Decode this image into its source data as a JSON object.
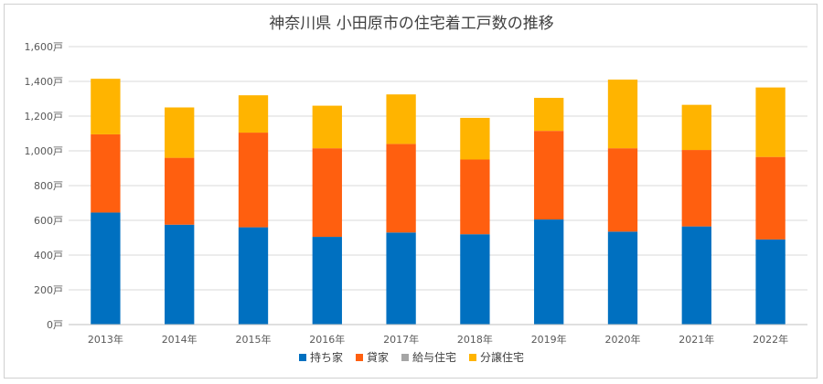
{
  "chart_data": {
    "type": "bar",
    "stacked": true,
    "title": "神奈川県 小田原市の住宅着工戸数の推移",
    "xlabel": "",
    "ylabel": "",
    "ylim": [
      0,
      1600
    ],
    "grid": true,
    "legend_position": "bottom",
    "categories": [
      "2013年",
      "2014年",
      "2015年",
      "2016年",
      "2017年",
      "2018年",
      "2019年",
      "2020年",
      "2021年",
      "2022年"
    ],
    "y_ticks": [
      {
        "value": 0,
        "label": "0戸"
      },
      {
        "value": 200,
        "label": "200戸"
      },
      {
        "value": 400,
        "label": "400戸"
      },
      {
        "value": 600,
        "label": "600戸"
      },
      {
        "value": 800,
        "label": "800戸"
      },
      {
        "value": 1000,
        "label": "1,000戸"
      },
      {
        "value": 1200,
        "label": "1,200戸"
      },
      {
        "value": 1400,
        "label": "1,400戸"
      },
      {
        "value": 1600,
        "label": "1,600戸"
      }
    ],
    "series": [
      {
        "name": "持ち家",
        "color": "#0070C0",
        "values": [
          645,
          575,
          560,
          505,
          530,
          520,
          605,
          535,
          565,
          490
        ]
      },
      {
        "name": "貸家",
        "color": "#FF5F0F",
        "values": [
          450,
          385,
          545,
          510,
          510,
          430,
          510,
          480,
          440,
          475
        ]
      },
      {
        "name": "給与住宅",
        "color": "#A5A5A5",
        "values": [
          0,
          0,
          0,
          0,
          0,
          0,
          0,
          0,
          0,
          0
        ]
      },
      {
        "name": "分譲住宅",
        "color": "#FFB400",
        "values": [
          320,
          290,
          215,
          245,
          285,
          240,
          190,
          395,
          260,
          400
        ]
      }
    ]
  }
}
